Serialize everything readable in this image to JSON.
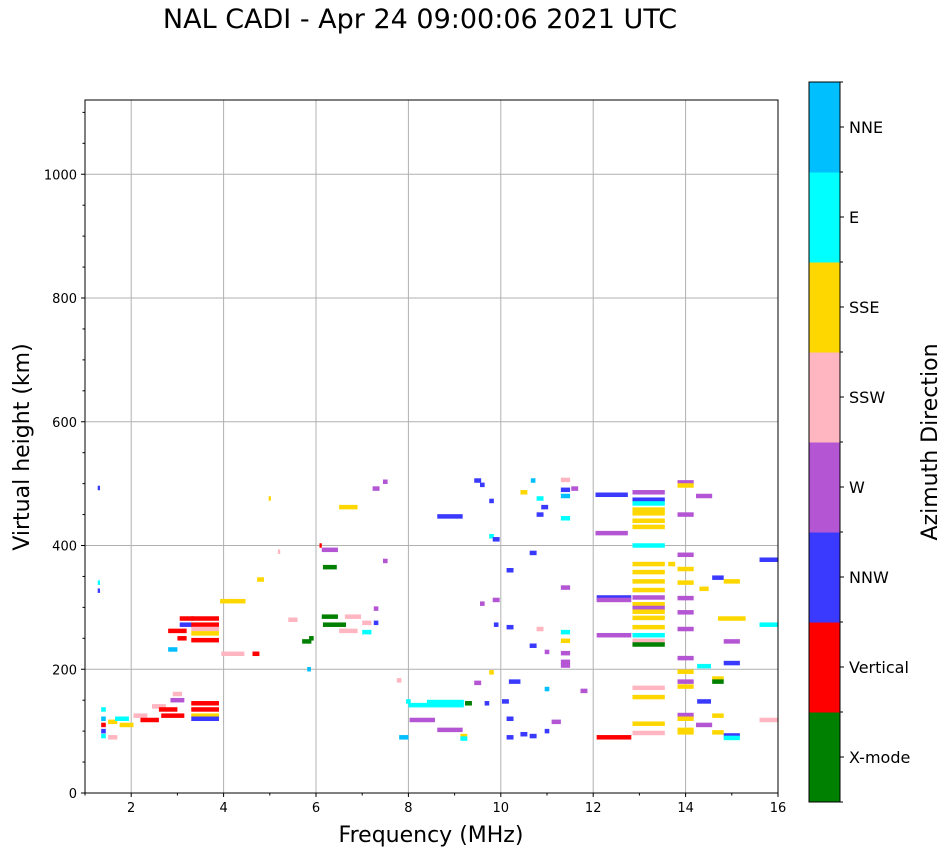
{
  "chart_data": {
    "type": "scatter",
    "title": "NAL CADI - Apr 24 09:00:06 2021 UTC",
    "xlabel": "Frequency (MHz)",
    "ylabel": "Virtual height (km)",
    "xlim": [
      1,
      16
    ],
    "ylim": [
      0,
      1120
    ],
    "xticks": [
      2,
      4,
      6,
      8,
      10,
      12,
      14,
      16
    ],
    "yticks": [
      0,
      200,
      400,
      600,
      800,
      1000
    ],
    "grid": true,
    "colorbar": {
      "title": "Azimuth Direction",
      "categories": [
        {
          "label": "X-mode",
          "color": "#008000"
        },
        {
          "label": "Vertical",
          "color": "#ff0000"
        },
        {
          "label": "NNW",
          "color": "#3a3aff"
        },
        {
          "label": "W",
          "color": "#b455d4"
        },
        {
          "label": "SSW",
          "color": "#ffb6c1"
        },
        {
          "label": "SSE",
          "color": "#ffd700"
        },
        {
          "label": "E",
          "color": "#00ffff"
        },
        {
          "label": "NNE",
          "color": "#00bfff"
        }
      ]
    },
    "points": [
      {
        "x": 1.3,
        "y": 493,
        "w": 0.05,
        "c": "NNW"
      },
      {
        "x": 1.3,
        "y": 340,
        "w": 0.05,
        "c": "E"
      },
      {
        "x": 1.3,
        "y": 327,
        "w": 0.05,
        "c": "NNW"
      },
      {
        "x": 1.4,
        "y": 135,
        "w": 0.1,
        "c": "E"
      },
      {
        "x": 1.4,
        "y": 120,
        "w": 0.1,
        "c": "NNE"
      },
      {
        "x": 1.4,
        "y": 110,
        "w": 0.1,
        "c": "Vertical"
      },
      {
        "x": 1.4,
        "y": 100,
        "w": 0.1,
        "c": "NNW"
      },
      {
        "x": 1.4,
        "y": 92,
        "w": 0.1,
        "c": "E"
      },
      {
        "x": 1.6,
        "y": 115,
        "w": 0.2,
        "c": "SSE"
      },
      {
        "x": 1.6,
        "y": 90,
        "w": 0.2,
        "c": "SSW"
      },
      {
        "x": 1.8,
        "y": 120,
        "w": 0.3,
        "c": "E"
      },
      {
        "x": 1.9,
        "y": 110,
        "w": 0.3,
        "c": "SSE"
      },
      {
        "x": 2.2,
        "y": 125,
        "w": 0.3,
        "c": "SSW"
      },
      {
        "x": 2.4,
        "y": 118,
        "w": 0.4,
        "c": "Vertical"
      },
      {
        "x": 2.6,
        "y": 140,
        "w": 0.3,
        "c": "SSW"
      },
      {
        "x": 2.8,
        "y": 135,
        "w": 0.4,
        "c": "Vertical"
      },
      {
        "x": 2.9,
        "y": 125,
        "w": 0.5,
        "c": "Vertical"
      },
      {
        "x": 3.0,
        "y": 150,
        "w": 0.3,
        "c": "W"
      },
      {
        "x": 3.0,
        "y": 160,
        "w": 0.2,
        "c": "SSW"
      },
      {
        "x": 3.6,
        "y": 145,
        "w": 0.6,
        "c": "Vertical"
      },
      {
        "x": 3.6,
        "y": 135,
        "w": 0.6,
        "c": "Vertical"
      },
      {
        "x": 3.6,
        "y": 125,
        "w": 0.6,
        "c": "SSE"
      },
      {
        "x": 3.6,
        "y": 120,
        "w": 0.6,
        "c": "NNW"
      },
      {
        "x": 2.9,
        "y": 232,
        "w": 0.2,
        "c": "NNE"
      },
      {
        "x": 3.0,
        "y": 262,
        "w": 0.4,
        "c": "Vertical"
      },
      {
        "x": 3.1,
        "y": 250,
        "w": 0.2,
        "c": "Vertical"
      },
      {
        "x": 3.2,
        "y": 282,
        "w": 0.3,
        "c": "Vertical"
      },
      {
        "x": 3.2,
        "y": 272,
        "w": 0.3,
        "c": "NNW"
      },
      {
        "x": 3.6,
        "y": 282,
        "w": 0.6,
        "c": "Vertical"
      },
      {
        "x": 3.6,
        "y": 272,
        "w": 0.6,
        "c": "Vertical"
      },
      {
        "x": 3.6,
        "y": 265,
        "w": 0.6,
        "c": "SSW"
      },
      {
        "x": 3.6,
        "y": 258,
        "w": 0.6,
        "c": "SSE"
      },
      {
        "x": 3.6,
        "y": 247,
        "w": 0.6,
        "c": "Vertical"
      },
      {
        "x": 4.2,
        "y": 310,
        "w": 0.55,
        "c": "SSE"
      },
      {
        "x": 4.2,
        "y": 225,
        "w": 0.5,
        "c": "SSW"
      },
      {
        "x": 4.7,
        "y": 225,
        "w": 0.15,
        "c": "Vertical"
      },
      {
        "x": 4.8,
        "y": 345,
        "w": 0.15,
        "c": "SSE"
      },
      {
        "x": 5.0,
        "y": 476,
        "w": 0.05,
        "c": "SSE"
      },
      {
        "x": 5.2,
        "y": 390,
        "w": 0.05,
        "c": "SSW"
      },
      {
        "x": 5.5,
        "y": 280,
        "w": 0.2,
        "c": "SSW"
      },
      {
        "x": 5.9,
        "y": 250,
        "w": 0.1,
        "c": "X-mode"
      },
      {
        "x": 5.8,
        "y": 245,
        "w": 0.2,
        "c": "X-mode"
      },
      {
        "x": 5.85,
        "y": 200,
        "w": 0.08,
        "c": "NNE"
      },
      {
        "x": 6.1,
        "y": 400,
        "w": 0.05,
        "c": "Vertical"
      },
      {
        "x": 6.3,
        "y": 393,
        "w": 0.35,
        "c": "W"
      },
      {
        "x": 6.3,
        "y": 365,
        "w": 0.3,
        "c": "X-mode"
      },
      {
        "x": 6.3,
        "y": 285,
        "w": 0.35,
        "c": "X-mode"
      },
      {
        "x": 6.4,
        "y": 272,
        "w": 0.5,
        "c": "X-mode"
      },
      {
        "x": 6.7,
        "y": 462,
        "w": 0.4,
        "c": "SSE"
      },
      {
        "x": 6.8,
        "y": 285,
        "w": 0.35,
        "c": "SSW"
      },
      {
        "x": 6.7,
        "y": 262,
        "w": 0.4,
        "c": "SSW"
      },
      {
        "x": 7.1,
        "y": 275,
        "w": 0.2,
        "c": "SSW"
      },
      {
        "x": 7.1,
        "y": 260,
        "w": 0.2,
        "c": "E"
      },
      {
        "x": 7.3,
        "y": 492,
        "w": 0.15,
        "c": "W"
      },
      {
        "x": 7.3,
        "y": 298,
        "w": 0.1,
        "c": "W"
      },
      {
        "x": 7.3,
        "y": 275,
        "w": 0.1,
        "c": "NNW"
      },
      {
        "x": 7.5,
        "y": 375,
        "w": 0.1,
        "c": "W"
      },
      {
        "x": 7.5,
        "y": 503,
        "w": 0.1,
        "c": "W"
      },
      {
        "x": 7.8,
        "y": 182,
        "w": 0.1,
        "c": "SSW"
      },
      {
        "x": 7.9,
        "y": 90,
        "w": 0.2,
        "c": "NNE"
      },
      {
        "x": 8.0,
        "y": 148,
        "w": 0.1,
        "c": "E"
      },
      {
        "x": 8.6,
        "y": 142,
        "w": 1.2,
        "c": "E"
      },
      {
        "x": 8.8,
        "y": 147,
        "w": 0.8,
        "c": "E"
      },
      {
        "x": 8.3,
        "y": 118,
        "w": 0.55,
        "c": "W"
      },
      {
        "x": 8.9,
        "y": 102,
        "w": 0.55,
        "c": "W"
      },
      {
        "x": 8.9,
        "y": 447,
        "w": 0.55,
        "c": "NNW"
      },
      {
        "x": 9.3,
        "y": 145,
        "w": 0.15,
        "c": "X-mode"
      },
      {
        "x": 9.2,
        "y": 92,
        "w": 0.15,
        "c": "SSE"
      },
      {
        "x": 9.2,
        "y": 88,
        "w": 0.15,
        "c": "E"
      },
      {
        "x": 9.5,
        "y": 505,
        "w": 0.15,
        "c": "NNW"
      },
      {
        "x": 9.6,
        "y": 498,
        "w": 0.1,
        "c": "NNW"
      },
      {
        "x": 9.5,
        "y": 178,
        "w": 0.15,
        "c": "W"
      },
      {
        "x": 9.6,
        "y": 306,
        "w": 0.1,
        "c": "W"
      },
      {
        "x": 9.7,
        "y": 145,
        "w": 0.1,
        "c": "NNW"
      },
      {
        "x": 9.8,
        "y": 195,
        "w": 0.1,
        "c": "SSE"
      },
      {
        "x": 9.8,
        "y": 472,
        "w": 0.1,
        "c": "NNW"
      },
      {
        "x": 9.8,
        "y": 415,
        "w": 0.1,
        "c": "E"
      },
      {
        "x": 9.9,
        "y": 410,
        "w": 0.15,
        "c": "NNW"
      },
      {
        "x": 9.9,
        "y": 312,
        "w": 0.15,
        "c": "W"
      },
      {
        "x": 9.9,
        "y": 272,
        "w": 0.1,
        "c": "NNW"
      },
      {
        "x": 10.1,
        "y": 148,
        "w": 0.15,
        "c": "NNW"
      },
      {
        "x": 10.2,
        "y": 360,
        "w": 0.15,
        "c": "NNW"
      },
      {
        "x": 10.3,
        "y": 180,
        "w": 0.25,
        "c": "NNW"
      },
      {
        "x": 10.2,
        "y": 268,
        "w": 0.15,
        "c": "NNW"
      },
      {
        "x": 10.2,
        "y": 120,
        "w": 0.15,
        "c": "NNW"
      },
      {
        "x": 10.2,
        "y": 90,
        "w": 0.15,
        "c": "NNW"
      },
      {
        "x": 10.5,
        "y": 486,
        "w": 0.15,
        "c": "SSE"
      },
      {
        "x": 10.5,
        "y": 95,
        "w": 0.15,
        "c": "NNW"
      },
      {
        "x": 10.7,
        "y": 505,
        "w": 0.1,
        "c": "NNE"
      },
      {
        "x": 10.7,
        "y": 388,
        "w": 0.15,
        "c": "NNW"
      },
      {
        "x": 10.7,
        "y": 238,
        "w": 0.15,
        "c": "NNW"
      },
      {
        "x": 10.7,
        "y": 92,
        "w": 0.15,
        "c": "NNW"
      },
      {
        "x": 10.85,
        "y": 476,
        "w": 0.15,
        "c": "E"
      },
      {
        "x": 10.85,
        "y": 450,
        "w": 0.15,
        "c": "NNW"
      },
      {
        "x": 10.85,
        "y": 265,
        "w": 0.15,
        "c": "SSW"
      },
      {
        "x": 10.95,
        "y": 462,
        "w": 0.15,
        "c": "NNW"
      },
      {
        "x": 11.0,
        "y": 228,
        "w": 0.1,
        "c": "W"
      },
      {
        "x": 11.0,
        "y": 168,
        "w": 0.1,
        "c": "NNE"
      },
      {
        "x": 11.0,
        "y": 100,
        "w": 0.1,
        "c": "NNW"
      },
      {
        "x": 11.2,
        "y": 115,
        "w": 0.2,
        "c": "W"
      },
      {
        "x": 11.4,
        "y": 506,
        "w": 0.2,
        "c": "SSW"
      },
      {
        "x": 11.4,
        "y": 490,
        "w": 0.2,
        "c": "NNW"
      },
      {
        "x": 11.4,
        "y": 480,
        "w": 0.2,
        "c": "NNE"
      },
      {
        "x": 11.4,
        "y": 444,
        "w": 0.2,
        "c": "E"
      },
      {
        "x": 11.4,
        "y": 332,
        "w": 0.2,
        "c": "W"
      },
      {
        "x": 11.4,
        "y": 260,
        "w": 0.2,
        "c": "E"
      },
      {
        "x": 11.4,
        "y": 246,
        "w": 0.2,
        "c": "SSE"
      },
      {
        "x": 11.4,
        "y": 226,
        "w": 0.2,
        "c": "W"
      },
      {
        "x": 11.4,
        "y": 212,
        "w": 0.2,
        "c": "W"
      },
      {
        "x": 11.4,
        "y": 206,
        "w": 0.2,
        "c": "W"
      },
      {
        "x": 11.6,
        "y": 492,
        "w": 0.15,
        "c": "W"
      },
      {
        "x": 11.8,
        "y": 165,
        "w": 0.15,
        "c": "W"
      },
      {
        "x": 12.4,
        "y": 482,
        "w": 0.7,
        "c": "NNW"
      },
      {
        "x": 12.4,
        "y": 420,
        "w": 0.7,
        "c": "W"
      },
      {
        "x": 12.45,
        "y": 316,
        "w": 0.75,
        "c": "NNW"
      },
      {
        "x": 12.45,
        "y": 312,
        "w": 0.75,
        "c": "W"
      },
      {
        "x": 12.45,
        "y": 255,
        "w": 0.75,
        "c": "W"
      },
      {
        "x": 12.45,
        "y": 90,
        "w": 0.75,
        "c": "Vertical"
      },
      {
        "x": 13.2,
        "y": 486,
        "w": 0.7,
        "c": "W"
      },
      {
        "x": 13.2,
        "y": 474,
        "w": 0.7,
        "c": "NNW"
      },
      {
        "x": 13.2,
        "y": 468,
        "w": 0.7,
        "c": "E"
      },
      {
        "x": 13.2,
        "y": 458,
        "w": 0.7,
        "c": "SSE"
      },
      {
        "x": 13.2,
        "y": 452,
        "w": 0.7,
        "c": "SSE"
      },
      {
        "x": 13.2,
        "y": 440,
        "w": 0.7,
        "c": "SSE"
      },
      {
        "x": 13.2,
        "y": 430,
        "w": 0.7,
        "c": "SSE"
      },
      {
        "x": 13.2,
        "y": 400,
        "w": 0.7,
        "c": "E"
      },
      {
        "x": 13.2,
        "y": 370,
        "w": 0.7,
        "c": "SSE"
      },
      {
        "x": 13.2,
        "y": 357,
        "w": 0.7,
        "c": "SSE"
      },
      {
        "x": 13.2,
        "y": 342,
        "w": 0.7,
        "c": "SSE"
      },
      {
        "x": 13.2,
        "y": 328,
        "w": 0.7,
        "c": "SSE"
      },
      {
        "x": 13.2,
        "y": 316,
        "w": 0.7,
        "c": "W"
      },
      {
        "x": 13.2,
        "y": 305,
        "w": 0.7,
        "c": "SSE"
      },
      {
        "x": 13.2,
        "y": 299,
        "w": 0.7,
        "c": "W"
      },
      {
        "x": 13.2,
        "y": 293,
        "w": 0.7,
        "c": "SSE"
      },
      {
        "x": 13.2,
        "y": 283,
        "w": 0.7,
        "c": "SSE"
      },
      {
        "x": 13.2,
        "y": 268,
        "w": 0.7,
        "c": "SSE"
      },
      {
        "x": 13.2,
        "y": 255,
        "w": 0.7,
        "c": "E"
      },
      {
        "x": 13.2,
        "y": 246,
        "w": 0.7,
        "c": "SSW"
      },
      {
        "x": 13.2,
        "y": 240,
        "w": 0.7,
        "c": "X-mode"
      },
      {
        "x": 13.2,
        "y": 170,
        "w": 0.7,
        "c": "SSW"
      },
      {
        "x": 13.2,
        "y": 155,
        "w": 0.7,
        "c": "SSE"
      },
      {
        "x": 13.2,
        "y": 112,
        "w": 0.7,
        "c": "SSE"
      },
      {
        "x": 13.2,
        "y": 97,
        "w": 0.7,
        "c": "SSW"
      },
      {
        "x": 13.7,
        "y": 370,
        "w": 0.15,
        "c": "SSE"
      },
      {
        "x": 14.0,
        "y": 502,
        "w": 0.35,
        "c": "W"
      },
      {
        "x": 14.0,
        "y": 497,
        "w": 0.35,
        "c": "SSE"
      },
      {
        "x": 14.0,
        "y": 450,
        "w": 0.35,
        "c": "W"
      },
      {
        "x": 14.0,
        "y": 385,
        "w": 0.35,
        "c": "W"
      },
      {
        "x": 14.0,
        "y": 362,
        "w": 0.35,
        "c": "SSE"
      },
      {
        "x": 14.0,
        "y": 340,
        "w": 0.35,
        "c": "SSE"
      },
      {
        "x": 14.0,
        "y": 315,
        "w": 0.35,
        "c": "W"
      },
      {
        "x": 14.0,
        "y": 292,
        "w": 0.35,
        "c": "W"
      },
      {
        "x": 14.0,
        "y": 265,
        "w": 0.35,
        "c": "W"
      },
      {
        "x": 14.0,
        "y": 218,
        "w": 0.35,
        "c": "W"
      },
      {
        "x": 14.0,
        "y": 196,
        "w": 0.35,
        "c": "SSE"
      },
      {
        "x": 14.0,
        "y": 180,
        "w": 0.35,
        "c": "W"
      },
      {
        "x": 14.0,
        "y": 172,
        "w": 0.35,
        "c": "SSE"
      },
      {
        "x": 14.0,
        "y": 126,
        "w": 0.35,
        "c": "W"
      },
      {
        "x": 14.0,
        "y": 120,
        "w": 0.35,
        "c": "SSE"
      },
      {
        "x": 14.0,
        "y": 102,
        "w": 0.35,
        "c": "SSE"
      },
      {
        "x": 14.0,
        "y": 98,
        "w": 0.35,
        "c": "SSE"
      },
      {
        "x": 14.4,
        "y": 480,
        "w": 0.35,
        "c": "W"
      },
      {
        "x": 14.4,
        "y": 330,
        "w": 0.2,
        "c": "SSE"
      },
      {
        "x": 14.4,
        "y": 205,
        "w": 0.3,
        "c": "E"
      },
      {
        "x": 14.4,
        "y": 148,
        "w": 0.3,
        "c": "NNW"
      },
      {
        "x": 14.4,
        "y": 110,
        "w": 0.35,
        "c": "W"
      },
      {
        "x": 14.7,
        "y": 348,
        "w": 0.25,
        "c": "NNW"
      },
      {
        "x": 14.7,
        "y": 185,
        "w": 0.25,
        "c": "SSE"
      },
      {
        "x": 14.7,
        "y": 180,
        "w": 0.25,
        "c": "X-mode"
      },
      {
        "x": 14.7,
        "y": 125,
        "w": 0.25,
        "c": "SSE"
      },
      {
        "x": 14.7,
        "y": 98,
        "w": 0.25,
        "c": "SSE"
      },
      {
        "x": 15.0,
        "y": 342,
        "w": 0.35,
        "c": "SSE"
      },
      {
        "x": 15.0,
        "y": 282,
        "w": 0.6,
        "c": "SSE"
      },
      {
        "x": 15.0,
        "y": 245,
        "w": 0.35,
        "c": "W"
      },
      {
        "x": 15.0,
        "y": 210,
        "w": 0.35,
        "c": "NNW"
      },
      {
        "x": 15.0,
        "y": 93,
        "w": 0.35,
        "c": "NNW"
      },
      {
        "x": 15.0,
        "y": 89,
        "w": 0.35,
        "c": "E"
      },
      {
        "x": 15.8,
        "y": 377,
        "w": 0.4,
        "c": "NNW"
      },
      {
        "x": 15.8,
        "y": 272,
        "w": 0.4,
        "c": "E"
      },
      {
        "x": 15.8,
        "y": 118,
        "w": 0.4,
        "c": "SSW"
      }
    ]
  }
}
